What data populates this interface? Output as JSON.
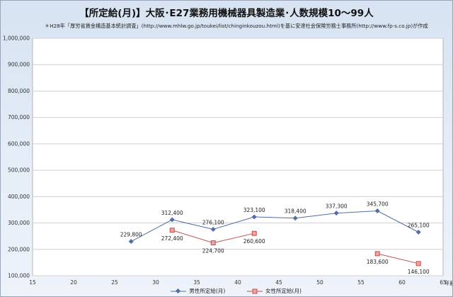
{
  "title": "【所定給(月)】大阪･E27業務用機械器具製造業･人数規模10～99人",
  "subtitle": "＊H28年「厚労省賃金構造基本統計調査」(http://www.mhlw.go.jp/toukei/list/chinginkouzou.html)を基に安達社会保険労務士事務所(http://www.fp-s.co.jp)が作成",
  "chart_data": {
    "type": "line",
    "title": "【所定給(月)】大阪･E27業務用機械器具製造業･人数規模10～99人",
    "xlabel": "年齢",
    "ylabel": "",
    "xlim": [
      15,
      65
    ],
    "ylim": [
      100000,
      1000000
    ],
    "x_ticks": [
      15,
      20,
      25,
      30,
      35,
      40,
      45,
      50,
      55,
      60,
      65
    ],
    "y_ticks": [
      100000,
      200000,
      300000,
      400000,
      500000,
      600000,
      700000,
      800000,
      900000,
      1000000
    ],
    "y_tick_labels": [
      "100,000",
      "200,000",
      "300,000",
      "400,000",
      "500,000",
      "600,000",
      "700,000",
      "800,000",
      "900,000",
      "1,000,000"
    ],
    "grid": true,
    "legend_position": "bottom",
    "series": [
      {
        "name": "男性所定給(月)",
        "color": "#4f6fa8",
        "marker": "diamond",
        "segments": [
          [
            {
              "x": 27,
              "y": 229800,
              "label": "229,800"
            },
            {
              "x": 32,
              "y": 312400,
              "label": "312,400"
            },
            {
              "x": 37,
              "y": 276100,
              "label": "276,100"
            },
            {
              "x": 42,
              "y": 323100,
              "label": "323,100"
            },
            {
              "x": 47,
              "y": 318400,
              "label": "318,400"
            },
            {
              "x": 52,
              "y": 337300,
              "label": "337,300"
            },
            {
              "x": 57,
              "y": 345700,
              "label": "345,700"
            },
            {
              "x": 62,
              "y": 265100,
              "label": "265,100"
            }
          ]
        ]
      },
      {
        "name": "女性所定給(月)",
        "color": "#c0504d",
        "marker": "square",
        "segments": [
          [
            {
              "x": 32,
              "y": 272400,
              "label": "272,400"
            },
            {
              "x": 37,
              "y": 224700,
              "label": "224,700"
            },
            {
              "x": 42,
              "y": 260600,
              "label": "260,600"
            }
          ],
          [
            {
              "x": 57,
              "y": 183600,
              "label": "183,600"
            },
            {
              "x": 62,
              "y": 146100,
              "label": "146,100"
            }
          ]
        ]
      }
    ]
  }
}
